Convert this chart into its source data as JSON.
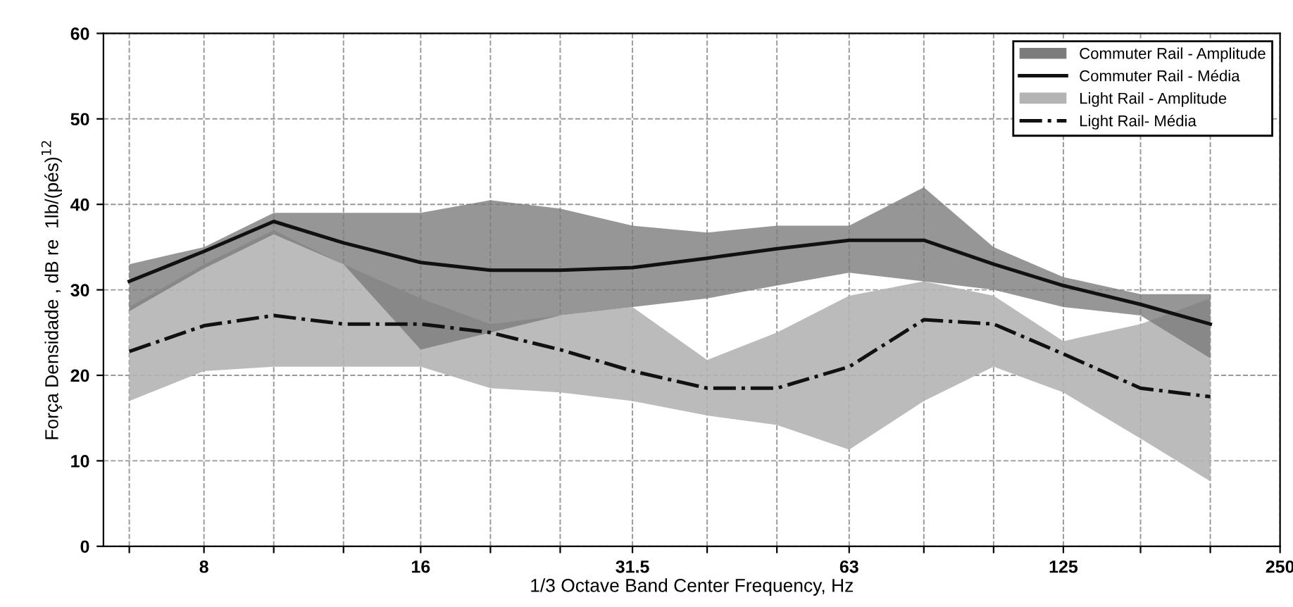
{
  "chart_data": {
    "type": "line",
    "xlabel": "1/3 Octave Band Center Frequency, Hz",
    "ylabel": "Força Densidade , dB re  1lb/(pés)$^{12}$",
    "log": "x",
    "x": [
      6.3,
      8,
      10,
      12.5,
      16,
      20,
      25,
      31.5,
      40,
      50,
      63,
      80,
      100,
      125,
      160,
      200
    ],
    "xlim": [
      5.8,
      250
    ],
    "xticks": [
      {
        "value": 6.3,
        "label": null
      },
      8,
      {
        "value": 10,
        "label": null
      },
      {
        "value": 12.5,
        "label": null
      },
      16,
      {
        "value": 20,
        "label": null
      },
      {
        "value": 25,
        "label": null
      },
      31.5,
      {
        "value": 40,
        "label": null
      },
      {
        "value": 50,
        "label": null
      },
      63,
      {
        "value": 80,
        "label": null
      },
      {
        "value": 100,
        "label": null
      },
      125,
      {
        "value": 160,
        "label": null
      },
      {
        "value": 200,
        "label": null
      },
      250
    ],
    "ylim": [
      0,
      60
    ],
    "yticks": [
      0,
      10,
      20,
      30,
      40,
      50,
      60
    ],
    "grid": true,
    "legend": "top right",
    "annotations": [
      "Commuter Rail - Amplitude",
      "Light Rail - Amplitude"
    ],
    "series": [
      {
        "name": "Commuter Rail - Média",
        "color": "#111111",
        "line_style": "solid",
        "values": [
          31,
          34.5,
          38,
          35.5,
          33.2,
          32.3,
          32.3,
          32.6,
          33.7,
          34.8,
          35.8,
          35.8,
          33,
          30.5,
          28.3,
          26
        ],
        "lower": [
          27.5,
          32.5,
          36.5,
          33,
          23,
          25,
          27,
          28,
          29,
          30.5,
          32,
          31,
          30,
          28,
          27,
          22
        ],
        "upper": [
          33,
          35,
          39,
          39,
          39,
          40.5,
          39.5,
          37.5,
          36.7,
          37.5,
          37.5,
          42,
          35,
          31.5,
          29.5,
          29.5
        ]
      },
      {
        "name": "Light Rail- Média",
        "color": "#111111",
        "line_style": "dashdot",
        "values": [
          22.8,
          25.8,
          27,
          26,
          26,
          25,
          23,
          20.5,
          18.5,
          18.5,
          21,
          26.5,
          26,
          22.5,
          18.5,
          17.5
        ],
        "lower": [
          17,
          20.5,
          21,
          21,
          21,
          18.5,
          18,
          17,
          15.3,
          14.2,
          11.3,
          17,
          21,
          18,
          12.6,
          7.6
        ],
        "upper": [
          28,
          33,
          37,
          33,
          29,
          26,
          27,
          28,
          21.8,
          25,
          29.3,
          31,
          29.3,
          24,
          26,
          29
        ]
      }
    ]
  }
}
